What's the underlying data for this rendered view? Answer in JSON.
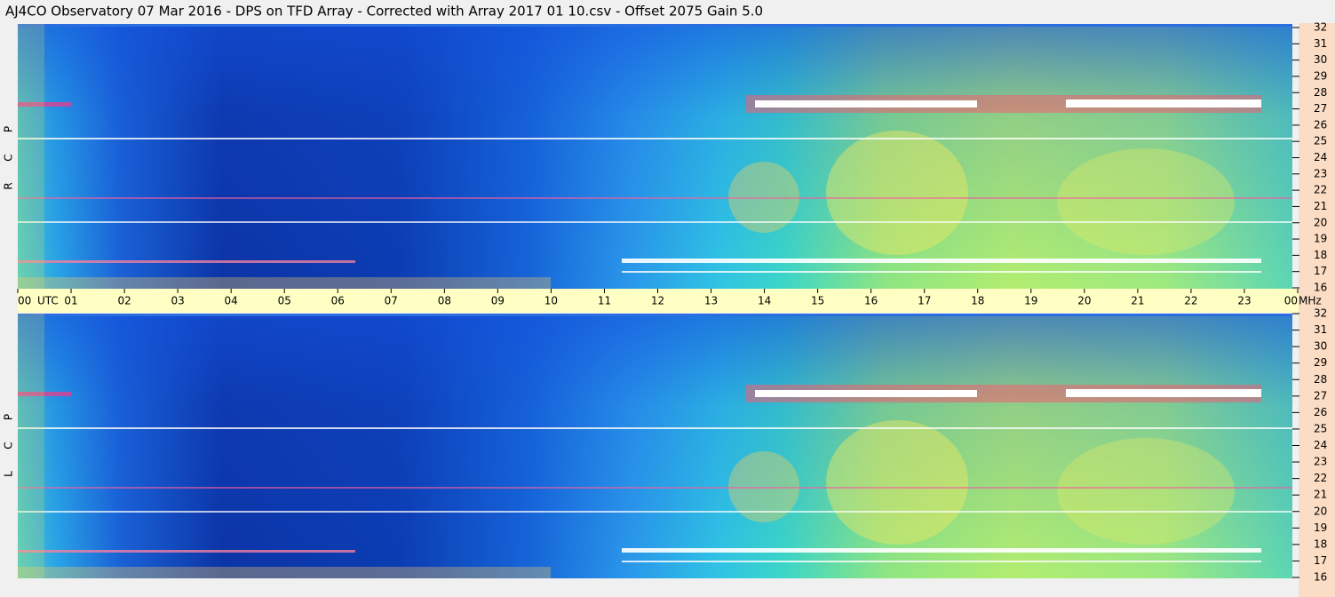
{
  "chart_data": {
    "type": "spectrogram",
    "title": "AJ4CO Observatory  07 Mar 2016  -  DPS on TFD Array  -  Corrected with Array 2017 01 10.csv  -  Offset 2075  Gain 5.0",
    "xlabel": "UTC",
    "ylabel": "MHz",
    "xlim": [
      0,
      24
    ],
    "xticks": [
      {
        "value": 0,
        "label": "00"
      },
      {
        "value": 1,
        "label": "01"
      },
      {
        "value": 2,
        "label": "02"
      },
      {
        "value": 3,
        "label": "03"
      },
      {
        "value": 4,
        "label": "04"
      },
      {
        "value": 5,
        "label": "05"
      },
      {
        "value": 6,
        "label": "06"
      },
      {
        "value": 7,
        "label": "07"
      },
      {
        "value": 8,
        "label": "08"
      },
      {
        "value": 9,
        "label": "09"
      },
      10,
      11,
      12,
      13,
      14,
      15,
      16,
      17,
      18,
      19,
      20,
      21,
      22,
      23,
      {
        "value": 24,
        "label": "00"
      }
    ],
    "ylim": [
      16,
      32
    ],
    "yticks": [
      16,
      17,
      18,
      19,
      20,
      21,
      22,
      23,
      24,
      25,
      26,
      27,
      28,
      29,
      30,
      31,
      32
    ],
    "panels": [
      {
        "letters": [
          "R",
          "C",
          "P"
        ]
      },
      {
        "letters": [
          "L",
          "C",
          "P"
        ]
      }
    ]
  }
}
